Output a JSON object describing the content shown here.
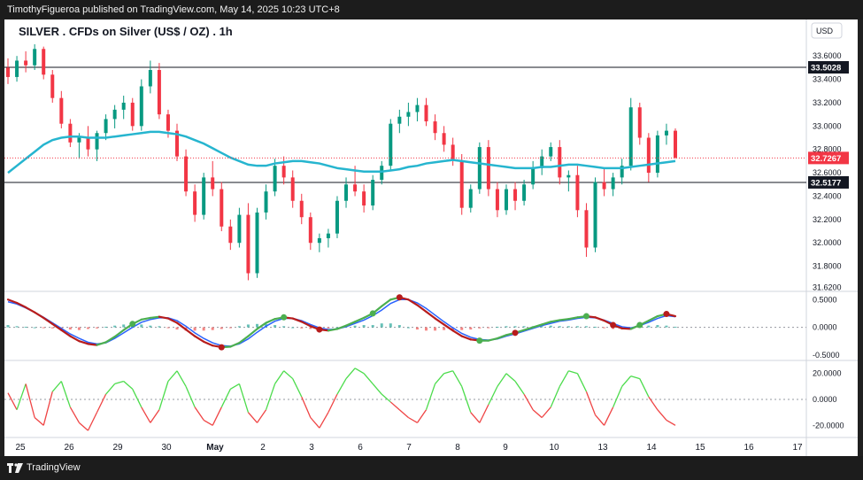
{
  "header": {
    "publisher_text": "TimothyFigueroa published on TradingView.com, May 14, 2025 10:23 UTC+8"
  },
  "footer": {
    "brand": "TradingView"
  },
  "chart_data": [
    {
      "type": "candlestick",
      "title": "SILVER . CFDs on Silver (US$ / OZ) . 1h",
      "currency_button": "USD",
      "x_ticks": [
        "25",
        "26",
        "29",
        "30",
        "May",
        "2",
        "3",
        "6",
        "7",
        "8",
        "9",
        "10",
        "13",
        "14",
        "15",
        "16",
        "17"
      ],
      "y_ticks": [
        "33.6000",
        "33.4000",
        "33.2000",
        "33.0000",
        "32.8000",
        "32.6000",
        "32.4000",
        "32.2000",
        "32.0000",
        "31.8000",
        "31.6200"
      ],
      "ylim": [
        31.6,
        33.7
      ],
      "price_line": {
        "value": 32.7267,
        "label": "32.7267",
        "color": "#f23645"
      },
      "horizontal_levels": [
        {
          "value": 33.5028,
          "label": "33.5028"
        },
        {
          "value": 32.5177,
          "label": "32.5177"
        }
      ],
      "candles_ohlc": [
        [
          33.5,
          33.58,
          33.36,
          33.42
        ],
        [
          33.42,
          33.6,
          33.38,
          33.56
        ],
        [
          33.56,
          33.64,
          33.46,
          33.52
        ],
        [
          33.52,
          33.7,
          33.48,
          33.66
        ],
        [
          33.66,
          33.68,
          33.4,
          33.44
        ],
        [
          33.44,
          33.48,
          33.2,
          33.24
        ],
        [
          33.24,
          33.3,
          32.98,
          33.02
        ],
        [
          33.02,
          33.06,
          32.82,
          32.86
        ],
        [
          32.86,
          32.94,
          32.72,
          32.9
        ],
        [
          32.9,
          33.0,
          32.74,
          32.8
        ],
        [
          32.8,
          32.96,
          32.7,
          32.94
        ],
        [
          32.94,
          33.1,
          32.88,
          33.06
        ],
        [
          33.06,
          33.18,
          32.98,
          33.14
        ],
        [
          33.14,
          33.26,
          33.06,
          33.2
        ],
        [
          33.2,
          33.24,
          32.96,
          33.0
        ],
        [
          33.0,
          33.4,
          32.96,
          33.34
        ],
        [
          33.34,
          33.56,
          33.28,
          33.48
        ],
        [
          33.48,
          33.54,
          33.06,
          33.1
        ],
        [
          33.1,
          33.14,
          32.9,
          32.96
        ],
        [
          32.96,
          33.02,
          32.7,
          32.74
        ],
        [
          32.74,
          32.8,
          32.4,
          32.44
        ],
        [
          32.44,
          32.5,
          32.18,
          32.24
        ],
        [
          32.24,
          32.6,
          32.2,
          32.56
        ],
        [
          32.56,
          32.7,
          32.4,
          32.46
        ],
        [
          32.46,
          32.52,
          32.1,
          32.14
        ],
        [
          32.14,
          32.2,
          31.94,
          32.0
        ],
        [
          32.0,
          32.3,
          31.96,
          32.24
        ],
        [
          32.24,
          32.34,
          31.68,
          31.74
        ],
        [
          31.74,
          32.3,
          31.7,
          32.26
        ],
        [
          32.26,
          32.5,
          32.2,
          32.44
        ],
        [
          32.44,
          32.72,
          32.4,
          32.66
        ],
        [
          32.66,
          32.74,
          32.5,
          32.56
        ],
        [
          32.56,
          32.62,
          32.3,
          32.36
        ],
        [
          32.36,
          32.42,
          32.16,
          32.22
        ],
        [
          32.22,
          32.26,
          31.94,
          32.0
        ],
        [
          32.0,
          32.08,
          31.92,
          32.04
        ],
        [
          32.04,
          32.12,
          31.96,
          32.08
        ],
        [
          32.08,
          32.4,
          32.04,
          32.36
        ],
        [
          32.36,
          32.56,
          32.3,
          32.5
        ],
        [
          32.5,
          32.66,
          32.4,
          32.44
        ],
        [
          32.44,
          32.5,
          32.26,
          32.32
        ],
        [
          32.32,
          32.58,
          32.28,
          32.54
        ],
        [
          32.54,
          32.7,
          32.5,
          32.66
        ],
        [
          32.66,
          33.06,
          32.62,
          33.02
        ],
        [
          33.02,
          33.14,
          32.94,
          33.08
        ],
        [
          33.08,
          33.2,
          33.0,
          33.12
        ],
        [
          33.12,
          33.24,
          33.04,
          33.18
        ],
        [
          33.18,
          33.24,
          33.0,
          33.04
        ],
        [
          33.04,
          33.1,
          32.88,
          32.94
        ],
        [
          32.94,
          33.0,
          32.78,
          32.84
        ],
        [
          32.84,
          32.9,
          32.66,
          32.7
        ],
        [
          32.7,
          32.76,
          32.24,
          32.3
        ],
        [
          32.3,
          32.5,
          32.26,
          32.46
        ],
        [
          32.46,
          32.86,
          32.42,
          32.82
        ],
        [
          32.82,
          32.88,
          32.4,
          32.46
        ],
        [
          32.46,
          32.52,
          32.22,
          32.28
        ],
        [
          32.28,
          32.5,
          32.24,
          32.46
        ],
        [
          32.46,
          32.52,
          32.28,
          32.36
        ],
        [
          32.36,
          32.54,
          32.32,
          32.5
        ],
        [
          32.5,
          32.7,
          32.46,
          32.64
        ],
        [
          32.64,
          32.8,
          32.58,
          32.74
        ],
        [
          32.74,
          32.86,
          32.7,
          32.82
        ],
        [
          32.82,
          32.88,
          32.5,
          32.56
        ],
        [
          32.56,
          32.62,
          32.44,
          32.58
        ],
        [
          32.58,
          32.66,
          32.22,
          32.28
        ],
        [
          32.28,
          32.34,
          31.88,
          31.96
        ],
        [
          31.96,
          32.56,
          31.92,
          32.52
        ],
        [
          32.52,
          32.64,
          32.4,
          32.46
        ],
        [
          32.46,
          32.6,
          32.4,
          32.56
        ],
        [
          32.56,
          32.72,
          32.5,
          32.66
        ],
        [
          32.66,
          33.24,
          32.62,
          33.16
        ],
        [
          33.16,
          33.2,
          32.84,
          32.9
        ],
        [
          32.9,
          32.94,
          32.52,
          32.6
        ],
        [
          32.6,
          32.96,
          32.56,
          32.92
        ],
        [
          32.92,
          33.02,
          32.84,
          32.96
        ],
        [
          32.96,
          32.98,
          32.72,
          32.73
        ]
      ],
      "sma": [
        32.6,
        32.66,
        32.72,
        32.78,
        32.84,
        32.88,
        32.9,
        32.91,
        32.91,
        32.9,
        32.9,
        32.9,
        32.91,
        32.92,
        32.93,
        32.94,
        32.95,
        32.95,
        32.94,
        32.93,
        32.91,
        32.88,
        32.85,
        32.81,
        32.77,
        32.73,
        32.7,
        32.67,
        32.66,
        32.66,
        32.68,
        32.69,
        32.7,
        32.7,
        32.69,
        32.68,
        32.66,
        32.64,
        32.63,
        32.62,
        32.61,
        32.61,
        32.61,
        32.62,
        32.63,
        32.65,
        32.66,
        32.68,
        32.69,
        32.7,
        32.71,
        32.7,
        32.69,
        32.68,
        32.67,
        32.66,
        32.65,
        32.64,
        32.64,
        32.64,
        32.65,
        32.65,
        32.66,
        32.67,
        32.67,
        32.66,
        32.65,
        32.64,
        32.64,
        32.64,
        32.65,
        32.66,
        32.67,
        32.68,
        32.69,
        32.7
      ],
      "sma_color": "#26b5cf"
    },
    {
      "type": "line",
      "name": "oscillator-1",
      "y_ticks": [
        "0.5000",
        "0.0000",
        "-0.5000"
      ],
      "ylim": [
        -0.55,
        0.6
      ],
      "series": [
        {
          "values": [
            0.5,
            0.44,
            0.36,
            0.27,
            0.17,
            0.06,
            -0.05,
            -0.16,
            -0.25,
            -0.3,
            -0.32,
            -0.27,
            -0.17,
            -0.05,
            0.06,
            0.14,
            0.17,
            0.19,
            0.16,
            0.08,
            -0.04,
            -0.16,
            -0.26,
            -0.33,
            -0.36,
            -0.35,
            -0.28,
            -0.16,
            -0.03,
            0.08,
            0.15,
            0.18,
            0.16,
            0.1,
            0.02,
            -0.04,
            -0.06,
            -0.03,
            0.03,
            0.1,
            0.17,
            0.25,
            0.38,
            0.5,
            0.54,
            0.5,
            0.4,
            0.28,
            0.16,
            0.05,
            -0.06,
            -0.16,
            -0.22,
            -0.24,
            -0.24,
            -0.2,
            -0.14,
            -0.1,
            -0.05,
            0.0,
            0.05,
            0.1,
            0.13,
            0.15,
            0.18,
            0.2,
            0.18,
            0.12,
            0.04,
            -0.02,
            -0.03,
            0.04,
            0.12,
            0.2,
            0.24,
            0.2
          ]
        },
        {
          "values": [
            0.46,
            0.42,
            0.35,
            0.27,
            0.18,
            0.08,
            -0.02,
            -0.12,
            -0.2,
            -0.27,
            -0.3,
            -0.28,
            -0.2,
            -0.1,
            0.0,
            0.09,
            0.14,
            0.17,
            0.17,
            0.12,
            0.02,
            -0.1,
            -0.2,
            -0.28,
            -0.33,
            -0.34,
            -0.3,
            -0.21,
            -0.09,
            0.02,
            0.11,
            0.16,
            0.16,
            0.12,
            0.05,
            -0.01,
            -0.04,
            -0.03,
            0.01,
            0.07,
            0.13,
            0.21,
            0.31,
            0.43,
            0.5,
            0.5,
            0.44,
            0.34,
            0.22,
            0.1,
            -0.01,
            -0.11,
            -0.18,
            -0.22,
            -0.23,
            -0.21,
            -0.16,
            -0.12,
            -0.07,
            -0.02,
            0.03,
            0.07,
            0.11,
            0.13,
            0.16,
            0.18,
            0.17,
            0.13,
            0.07,
            0.01,
            -0.01,
            0.03,
            0.09,
            0.16,
            0.21,
            0.19
          ]
        }
      ],
      "histogram": [
        0.04,
        0.02,
        0.01,
        0.0,
        -0.01,
        -0.02,
        -0.03,
        -0.04,
        -0.05,
        -0.03,
        -0.02,
        0.01,
        0.03,
        0.05,
        0.06,
        0.05,
        0.03,
        0.02,
        -0.01,
        -0.04,
        -0.06,
        -0.06,
        -0.06,
        -0.05,
        -0.03,
        -0.01,
        0.02,
        0.05,
        0.06,
        0.06,
        0.04,
        0.02,
        0.0,
        -0.02,
        -0.03,
        -0.03,
        -0.02,
        0.0,
        0.02,
        0.03,
        0.04,
        0.04,
        0.07,
        0.07,
        0.04,
        0.0,
        -0.04,
        -0.06,
        -0.06,
        -0.05,
        -0.05,
        -0.05,
        -0.04,
        -0.02,
        -0.01,
        0.01,
        0.02,
        0.02,
        0.02,
        0.02,
        0.02,
        0.03,
        0.02,
        0.02,
        0.02,
        0.02,
        0.01,
        -0.01,
        -0.03,
        -0.03,
        -0.02,
        0.01,
        0.03,
        0.04,
        0.03,
        0.01
      ],
      "cross_markers": [
        {
          "index": 14,
          "kind": "bull"
        },
        {
          "index": 24,
          "kind": "bear"
        },
        {
          "index": 31,
          "kind": "bull"
        },
        {
          "index": 35,
          "kind": "bear"
        },
        {
          "index": 41,
          "kind": "bull"
        },
        {
          "index": 44,
          "kind": "bear"
        },
        {
          "index": 53,
          "kind": "bull"
        },
        {
          "index": 57,
          "kind": "bear"
        },
        {
          "index": 65,
          "kind": "bull"
        },
        {
          "index": 68,
          "kind": "bear"
        },
        {
          "index": 71,
          "kind": "bull"
        },
        {
          "index": 74,
          "kind": "bear"
        }
      ]
    },
    {
      "type": "line",
      "name": "oscillator-2",
      "y_ticks": [
        "20.0000",
        "0.0000",
        "-20.0000"
      ],
      "ylim": [
        -28,
        28
      ],
      "values": [
        5,
        -8,
        12,
        -14,
        -20,
        6,
        14,
        -6,
        -18,
        -24,
        -10,
        4,
        12,
        14,
        8,
        -6,
        -18,
        -8,
        14,
        22,
        10,
        -6,
        -16,
        -20,
        -6,
        8,
        12,
        -10,
        -18,
        -8,
        12,
        22,
        16,
        2,
        -14,
        -22,
        -10,
        4,
        16,
        24,
        20,
        12,
        4,
        -2,
        -8,
        -14,
        -18,
        -8,
        12,
        20,
        22,
        10,
        -10,
        -18,
        -4,
        10,
        20,
        14,
        4,
        -8,
        -14,
        -6,
        10,
        22,
        20,
        6,
        -12,
        -20,
        -6,
        10,
        18,
        16,
        2,
        -8,
        -16,
        -20
      ]
    }
  ]
}
